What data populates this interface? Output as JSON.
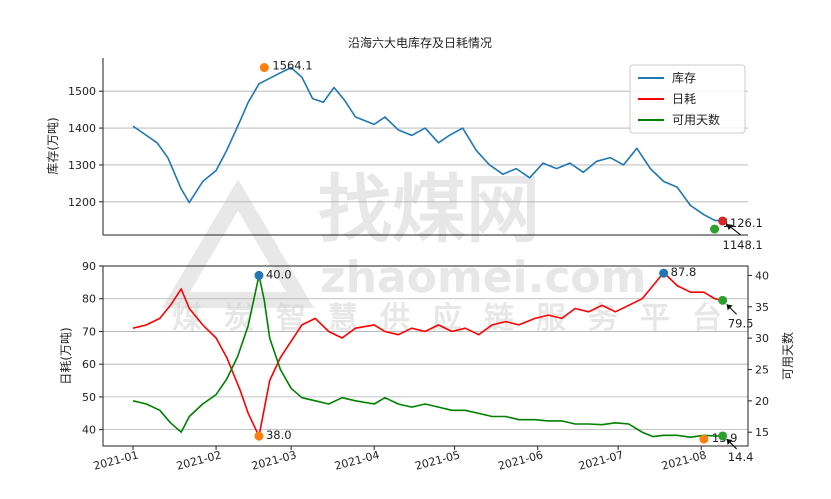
{
  "chart_data": [
    {
      "type": "line",
      "title": "沿海六大电库存及日耗情况",
      "ylabel": "库存(万吨)",
      "ylim": [
        1110,
        1590
      ],
      "yticks": [
        1200,
        1300,
        1400,
        1500
      ],
      "grid": true,
      "legend_position": "top-right",
      "legend": [
        {
          "name": "库存",
          "color": "#1f77b4"
        },
        {
          "name": "日耗",
          "color": "#ff0000"
        },
        {
          "name": "可用天数",
          "color": "#008000"
        }
      ],
      "series": [
        {
          "name": "库存",
          "color": "#1f77b4",
          "x": [
            "2021-01-01",
            "2021-01-06",
            "2021-01-10",
            "2021-01-14",
            "2021-01-19",
            "2021-01-22",
            "2021-01-27",
            "2021-02-01",
            "2021-02-05",
            "2021-02-10",
            "2021-02-13",
            "2021-02-17",
            "2021-02-21",
            "2021-02-25",
            "2021-03-01",
            "2021-03-05",
            "2021-03-09",
            "2021-03-13",
            "2021-03-17",
            "2021-03-21",
            "2021-03-25",
            "2021-04-01",
            "2021-04-05",
            "2021-04-10",
            "2021-04-15",
            "2021-04-20",
            "2021-04-25",
            "2021-04-29",
            "2021-05-04",
            "2021-05-09",
            "2021-05-14",
            "2021-05-19",
            "2021-05-24",
            "2021-05-29",
            "2021-06-03",
            "2021-06-08",
            "2021-06-13",
            "2021-06-18",
            "2021-06-23",
            "2021-06-28",
            "2021-07-03",
            "2021-07-08",
            "2021-07-13",
            "2021-07-18",
            "2021-07-23",
            "2021-07-28",
            "2021-08-02",
            "2021-08-06",
            "2021-08-09"
          ],
          "values": [
            1405,
            1380,
            1360,
            1320,
            1235,
            1198,
            1255,
            1285,
            1340,
            1420,
            1470,
            1520,
            1535,
            1550,
            1564,
            1538,
            1480,
            1470,
            1510,
            1475,
            1430,
            1410,
            1430,
            1395,
            1380,
            1400,
            1360,
            1380,
            1400,
            1340,
            1300,
            1275,
            1290,
            1265,
            1305,
            1290,
            1305,
            1280,
            1310,
            1320,
            1300,
            1345,
            1290,
            1255,
            1240,
            1190,
            1165,
            1150,
            1148.1
          ]
        }
      ],
      "annotations": [
        {
          "label": "1564.1",
          "x": "2021-02-19",
          "value": 1564.1,
          "marker_color": "#ff7f0e"
        },
        {
          "label": "1126.1",
          "x": "2021-08-06",
          "value": 1126.1,
          "marker_color": "#2ca02c"
        },
        {
          "label": "1148.1",
          "x": "2021-08-09",
          "value": 1148.1,
          "marker_color": "#d62728"
        }
      ]
    },
    {
      "type": "line",
      "ylabel_left": "日耗(万吨)",
      "ylabel_right": "可用天数",
      "ylim_left": [
        35,
        90
      ],
      "ylim_right": [
        12.8,
        41.5
      ],
      "yticks_left": [
        40,
        50,
        60,
        70,
        80,
        90
      ],
      "yticks_right": [
        15,
        20,
        25,
        30,
        35,
        40
      ],
      "x_ticks": [
        "2021-01",
        "2021-02",
        "2021-03",
        "2021-04",
        "2021-05",
        "2021-06",
        "2021-07",
        "2021-08"
      ],
      "grid": true,
      "series": [
        {
          "name": "日耗",
          "axis": "left",
          "color": "#ff0000",
          "x": [
            "2021-01-01",
            "2021-01-06",
            "2021-01-11",
            "2021-01-15",
            "2021-01-19",
            "2021-01-22",
            "2021-01-27",
            "2021-02-01",
            "2021-02-05",
            "2021-02-10",
            "2021-02-13",
            "2021-02-17",
            "2021-02-21",
            "2021-02-25",
            "2021-03-01",
            "2021-03-05",
            "2021-03-10",
            "2021-03-15",
            "2021-03-20",
            "2021-03-25",
            "2021-04-01",
            "2021-04-05",
            "2021-04-10",
            "2021-04-15",
            "2021-04-20",
            "2021-04-25",
            "2021-04-30",
            "2021-05-05",
            "2021-05-10",
            "2021-05-15",
            "2021-05-20",
            "2021-05-25",
            "2021-05-31",
            "2021-06-05",
            "2021-06-10",
            "2021-06-15",
            "2021-06-20",
            "2021-06-25",
            "2021-06-30",
            "2021-07-05",
            "2021-07-10",
            "2021-07-14",
            "2021-07-18",
            "2021-07-23",
            "2021-07-28",
            "2021-08-02",
            "2021-08-06",
            "2021-08-09"
          ],
          "values": [
            71,
            72,
            74,
            78,
            83,
            77,
            72,
            68,
            62,
            52,
            45,
            38,
            55,
            62,
            67,
            72,
            74,
            70,
            68,
            71,
            72,
            70,
            69,
            71,
            70,
            72,
            70,
            71,
            69,
            72,
            73,
            72,
            74,
            75,
            74,
            77,
            76,
            78,
            76,
            78,
            80,
            84,
            88,
            84,
            82,
            82,
            80,
            79.5
          ]
        },
        {
          "name": "可用天数",
          "axis": "right",
          "color": "#008000",
          "x": [
            "2021-01-01",
            "2021-01-06",
            "2021-01-11",
            "2021-01-15",
            "2021-01-19",
            "2021-01-22",
            "2021-01-27",
            "2021-02-01",
            "2021-02-05",
            "2021-02-09",
            "2021-02-13",
            "2021-02-17",
            "2021-02-19",
            "2021-02-21",
            "2021-02-25",
            "2021-03-01",
            "2021-03-05",
            "2021-03-10",
            "2021-03-15",
            "2021-03-20",
            "2021-03-25",
            "2021-04-01",
            "2021-04-05",
            "2021-04-10",
            "2021-04-15",
            "2021-04-20",
            "2021-04-25",
            "2021-04-30",
            "2021-05-05",
            "2021-05-10",
            "2021-05-15",
            "2021-05-20",
            "2021-05-25",
            "2021-05-31",
            "2021-06-05",
            "2021-06-10",
            "2021-06-15",
            "2021-06-20",
            "2021-06-25",
            "2021-06-30",
            "2021-07-05",
            "2021-07-10",
            "2021-07-14",
            "2021-07-18",
            "2021-07-23",
            "2021-07-28",
            "2021-08-02",
            "2021-08-06",
            "2021-08-09"
          ],
          "values": [
            20,
            19.5,
            18.5,
            16.5,
            15,
            17.5,
            19.5,
            21,
            23.5,
            27,
            32,
            40,
            36,
            30,
            25,
            22,
            20.5,
            20,
            19.5,
            20.5,
            20,
            19.5,
            20.5,
            19.5,
            19,
            19.5,
            19,
            18.5,
            18.5,
            18,
            17.5,
            17.5,
            17,
            17,
            16.8,
            16.8,
            16.3,
            16.3,
            16.2,
            16.5,
            16.3,
            15,
            14.3,
            14.5,
            14.5,
            14.2,
            14.5,
            14.4,
            14.4
          ]
        }
      ],
      "annotations": [
        {
          "label": "40.0",
          "x": "2021-02-17",
          "value": 40.0,
          "axis": "right",
          "marker_color": "#1f77b4"
        },
        {
          "label": "38.0",
          "x": "2021-02-17",
          "value": 38.0,
          "axis": "left",
          "marker_color": "#ff7f0e"
        },
        {
          "label": "87.8",
          "x": "2021-07-18",
          "value": 87.8,
          "axis": "left",
          "marker_color": "#1f77b4"
        },
        {
          "label": "13.9",
          "x": "2021-08-02",
          "value": 13.9,
          "axis": "right",
          "marker_color": "#ff7f0e"
        },
        {
          "label": "79.5",
          "x": "2021-08-09",
          "value": 79.5,
          "axis": "left",
          "marker_color": "#2ca02c"
        },
        {
          "label": "14.4",
          "x": "2021-08-09",
          "value": 14.4,
          "axis": "right",
          "marker_color": "#2ca02c"
        }
      ]
    }
  ],
  "watermark": {
    "brand": "找煤网",
    "domain": "zhaomei.com",
    "slogan": "煤炭智慧供应链服务平台"
  }
}
